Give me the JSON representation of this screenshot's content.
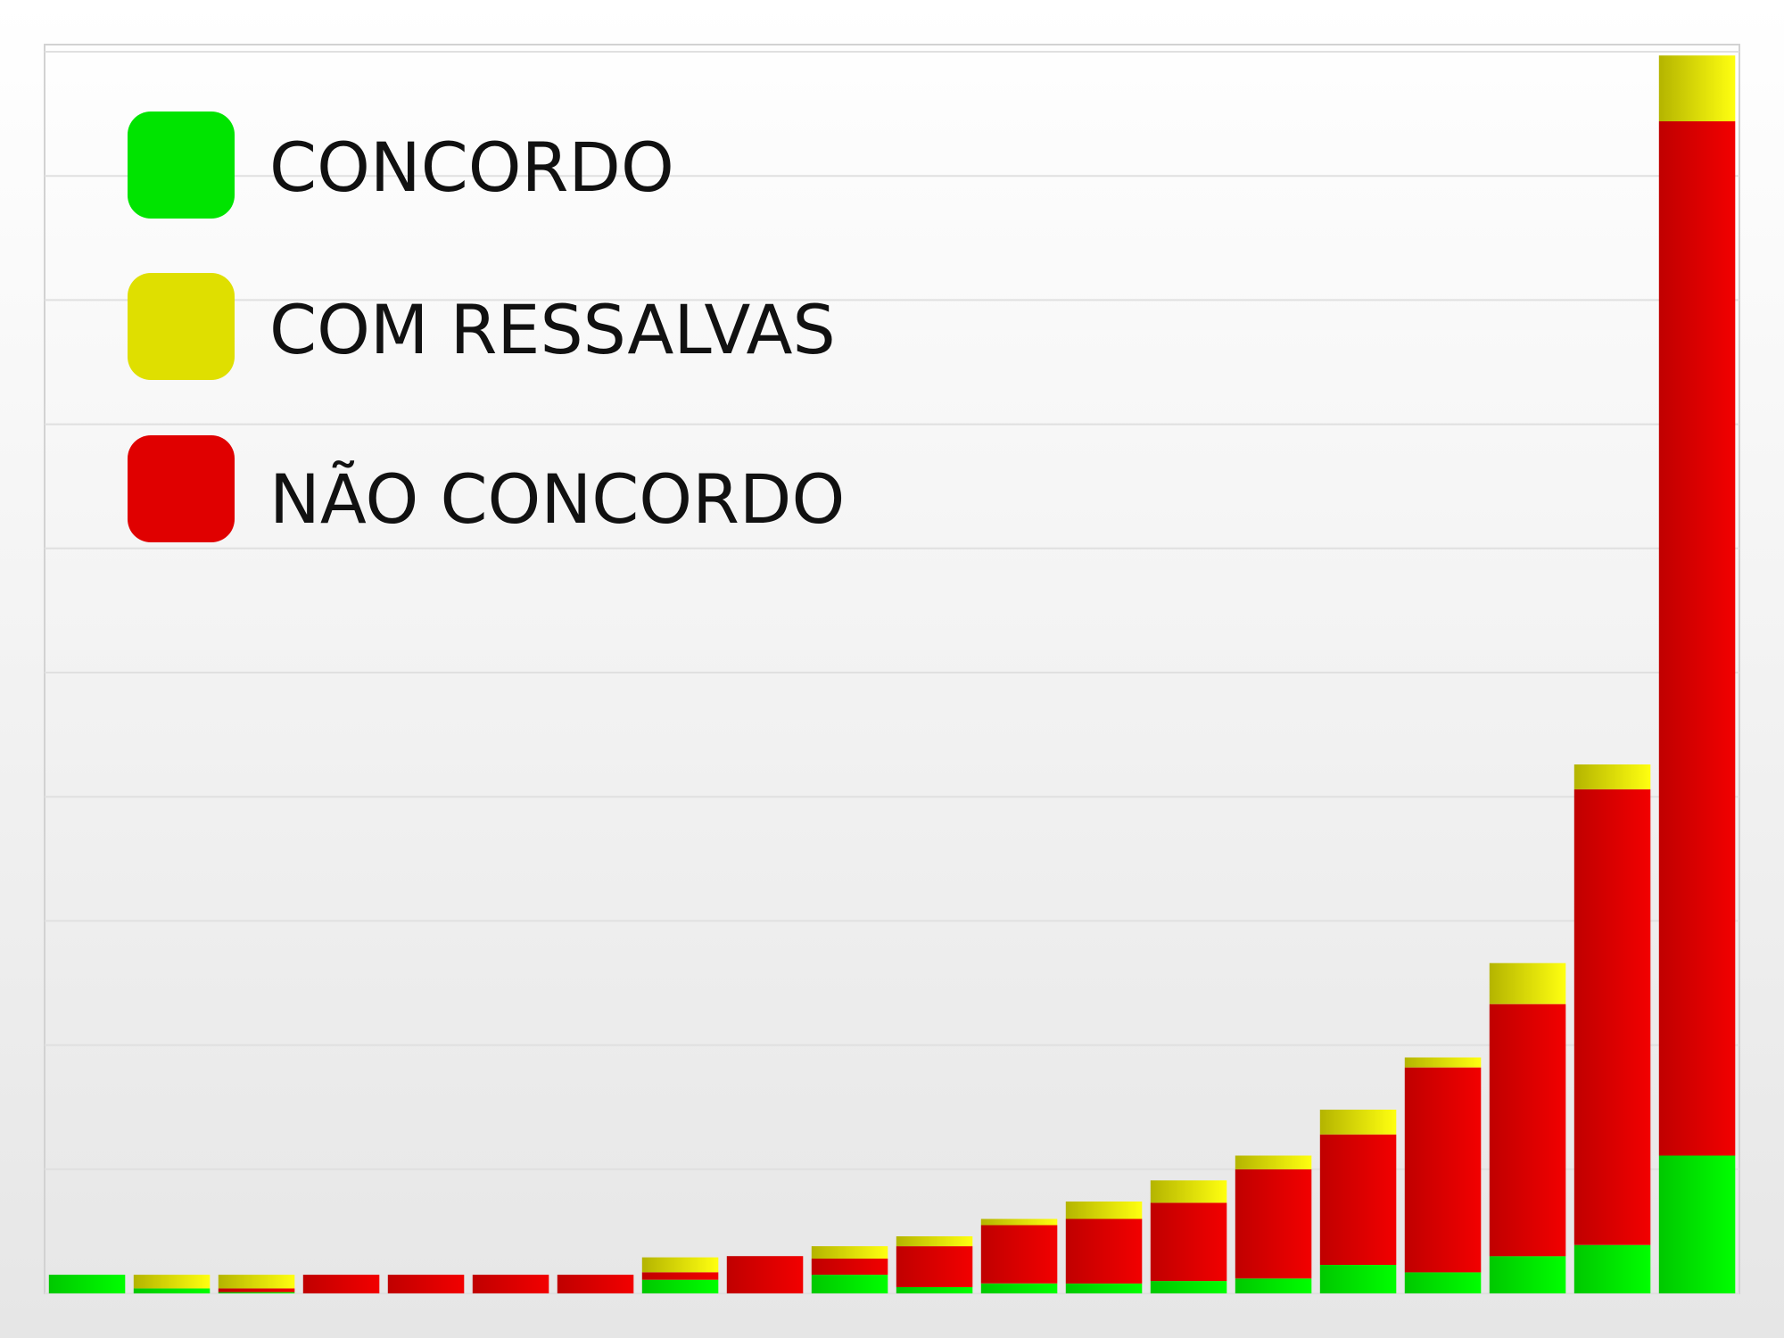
{
  "chart_data": {
    "type": "bar",
    "stacked": true,
    "grid": true,
    "legend_position": "top-left",
    "ylim": [
      0,
      100
    ],
    "categories": [
      "",
      "",
      "",
      "",
      "",
      "",
      "",
      "",
      "",
      "",
      "",
      "",
      "",
      "",
      "",
      "",
      "",
      "",
      "",
      ""
    ],
    "series": [
      {
        "name": "CONCORDO",
        "color": "#00e400",
        "values": [
          1.5,
          0.4,
          0.1,
          0,
          0,
          0,
          0,
          1.1,
          0,
          1.5,
          0.5,
          0.8,
          0.8,
          1.0,
          1.2,
          2.3,
          1.7,
          3.0,
          3.9,
          11.1
        ]
      },
      {
        "name": "NÃO CONCORDO",
        "color": "#e60000",
        "values": [
          0,
          0,
          0.3,
          1.5,
          1.5,
          1.5,
          1.5,
          0.6,
          3.0,
          1.3,
          3.3,
          4.7,
          5.2,
          6.3,
          8.8,
          10.5,
          16.5,
          20.3,
          36.7,
          83.3
        ]
      },
      {
        "name": "COM RESSALVAS",
        "color": "#dfdf00",
        "values": [
          0,
          1.1,
          1.1,
          0,
          0,
          0,
          0,
          1.2,
          0,
          1.0,
          0.8,
          0.5,
          1.4,
          1.8,
          1.1,
          2.0,
          0.8,
          3.3,
          2.0,
          5.3
        ]
      }
    ]
  }
}
